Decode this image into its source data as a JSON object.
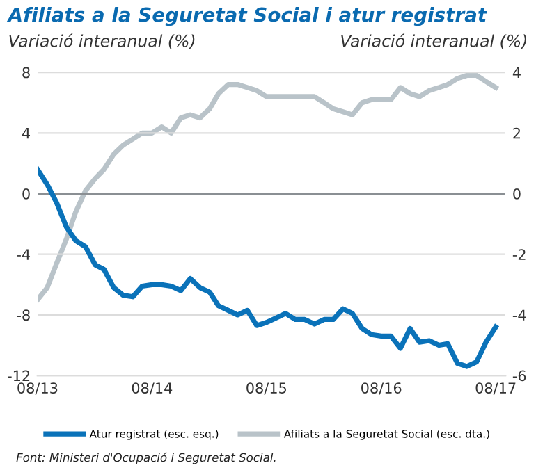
{
  "chart_data": {
    "type": "line",
    "title": "Afiliats a la Seguretat Social i atur registrat",
    "ylabel": "Variació interanual (%)",
    "y2label": "Variació interanual (%)",
    "x": [
      "2013-08",
      "2013-09",
      "2013-10",
      "2013-11",
      "2013-12",
      "2014-01",
      "2014-02",
      "2014-03",
      "2014-04",
      "2014-05",
      "2014-06",
      "2014-07",
      "2014-08",
      "2014-09",
      "2014-10",
      "2014-11",
      "2014-12",
      "2015-01",
      "2015-02",
      "2015-03",
      "2015-04",
      "2015-05",
      "2015-06",
      "2015-07",
      "2015-08",
      "2015-09",
      "2015-10",
      "2015-11",
      "2015-12",
      "2016-01",
      "2016-02",
      "2016-03",
      "2016-04",
      "2016-05",
      "2016-06",
      "2016-07",
      "2016-08",
      "2016-09",
      "2016-10",
      "2016-11",
      "2016-12",
      "2017-01",
      "2017-02",
      "2017-03",
      "2017-04",
      "2017-05",
      "2017-06",
      "2017-07",
      "2017-08"
    ],
    "series": [
      {
        "name": "Atur registrat (esc. esq.)",
        "color": "#0a72b9",
        "values": [
          1.6,
          0.6,
          -0.6,
          -2.2,
          -3.1,
          -3.5,
          -4.7,
          -5.0,
          -6.2,
          -6.7,
          -6.8,
          -6.1,
          -6.0,
          -6.0,
          -6.1,
          -6.4,
          -5.6,
          -6.2,
          -6.5,
          -7.4,
          -7.7,
          -8.0,
          -7.7,
          -8.7,
          -8.5,
          -8.2,
          -7.9,
          -8.3,
          -8.3,
          -8.6,
          -8.3,
          -8.3,
          -7.6,
          -7.9,
          -8.9,
          -9.3,
          -9.4,
          -9.4,
          -10.2,
          -8.9,
          -9.8,
          -9.7,
          -10.0,
          -9.9,
          -11.2,
          -11.4,
          -11.1,
          -9.8,
          -8.8
        ]
      },
      {
        "name": "Afiliats a la Seguretat Social (esc. dta.)",
        "color": "#b9c3c9",
        "axis": "y2",
        "values": [
          -3.5,
          -3.1,
          -2.3,
          -1.5,
          -0.6,
          0.1,
          0.5,
          0.8,
          1.3,
          1.6,
          1.8,
          2.0,
          2.0,
          2.2,
          2.0,
          2.5,
          2.6,
          2.5,
          2.8,
          3.3,
          3.6,
          3.6,
          3.5,
          3.4,
          3.2,
          3.2,
          3.2,
          3.2,
          3.2,
          3.2,
          3.0,
          2.8,
          2.7,
          2.6,
          3.0,
          3.1,
          3.1,
          3.1,
          3.5,
          3.3,
          3.2,
          3.4,
          3.5,
          3.6,
          3.8,
          3.9,
          3.9,
          3.7,
          3.5
        ]
      }
    ],
    "xlim": [
      "2013-08",
      "2017-09"
    ],
    "xticks": [
      {
        "value": "2013-08",
        "label": "08/13"
      },
      {
        "value": "2014-08",
        "label": "08/14"
      },
      {
        "value": "2015-08",
        "label": "08/15"
      },
      {
        "value": "2016-08",
        "label": "08/16"
      },
      {
        "value": "2017-08",
        "label": "08/17"
      }
    ],
    "ylim": [
      -12,
      8
    ],
    "yticks": [
      -12,
      -8,
      -4,
      0,
      4,
      8
    ],
    "y2lim": [
      -6,
      4
    ],
    "y2ticks": [
      -6,
      -4,
      -2,
      0,
      2,
      4
    ],
    "ref_lines": [
      {
        "axis": "y",
        "value": 0,
        "color": "#8a8f93"
      }
    ],
    "grid": "y",
    "legend": "bottom",
    "marker": "none",
    "line_style": "solid",
    "annotations": [
      "Font: Ministeri d'Ocupació i Seguretat Social."
    ]
  }
}
